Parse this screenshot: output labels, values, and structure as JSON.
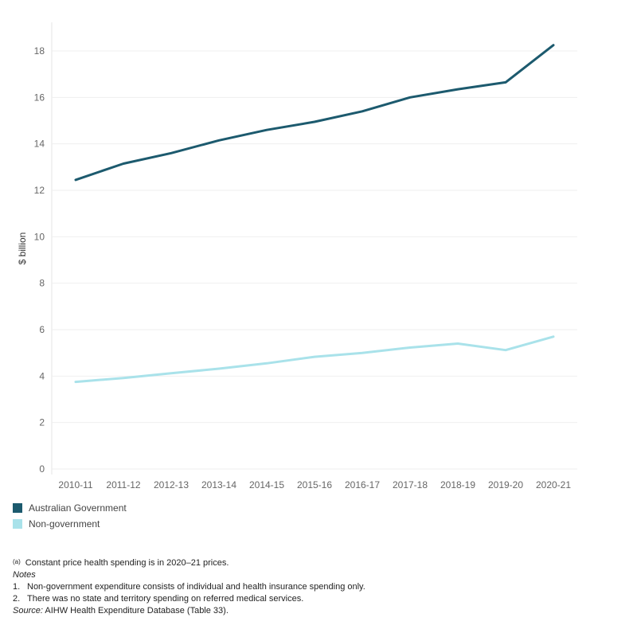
{
  "chart_data": {
    "type": "line",
    "categories": [
      "2010-11",
      "2011-12",
      "2012-13",
      "2013-14",
      "2014-15",
      "2015-16",
      "2016-17",
      "2017-18",
      "2018-19",
      "2019-20",
      "2020-21"
    ],
    "ylabel": "$ billion",
    "ylim": [
      0,
      19.2
    ],
    "yticks": [
      0,
      2,
      4,
      6,
      8,
      10,
      12,
      14,
      16,
      18
    ],
    "grid": "horizontal",
    "legend_position": "bottom-left",
    "series": [
      {
        "name": "Australian Government",
        "color": "#1c5a6e",
        "values": [
          12.45,
          13.15,
          13.6,
          14.15,
          14.6,
          14.95,
          15.4,
          16.0,
          16.35,
          16.65,
          18.25
        ]
      },
      {
        "name": "Non-government",
        "color": "#a9e2ea",
        "values": [
          3.75,
          3.92,
          4.12,
          4.32,
          4.55,
          4.83,
          5.0,
          5.23,
          5.4,
          5.12,
          5.7
        ]
      }
    ]
  },
  "notes": {
    "footnote_marker": "(a)",
    "footnote_text": "Constant price health spending is in 2020–21 prices.",
    "notes_heading": "Notes",
    "note_items": [
      {
        "num": "1.",
        "text": "Non-government expenditure consists of individual and health insurance spending only."
      },
      {
        "num": "2.",
        "text": "There was no state and territory spending on referred medical services."
      }
    ],
    "source_label": "Source:",
    "source_text": "AIHW Health Expenditure Database (Table 33)."
  }
}
